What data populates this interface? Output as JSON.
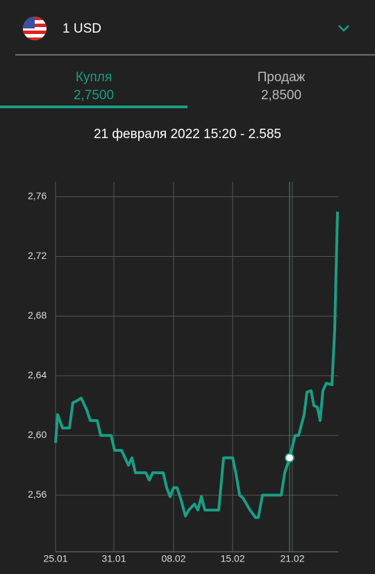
{
  "header": {
    "currency": "1 USD"
  },
  "tabs": [
    {
      "label": "Купля",
      "value": "2,7500"
    },
    {
      "label": "Продаж",
      "value": "2,8500"
    }
  ],
  "chart_data": {
    "type": "line",
    "annotation": "21 февраля 2022 15:20 - 2.585",
    "x": [
      0,
      0.6,
      2,
      3,
      4,
      5,
      6,
      7.4,
      9,
      10,
      12,
      13,
      16,
      17,
      19,
      20,
      21,
      22,
      23,
      26,
      27,
      28,
      31,
      32,
      33,
      34,
      35,
      36,
      37.4,
      38.4,
      40,
      41,
      42,
      43,
      47,
      48.4,
      51,
      52,
      53,
      54,
      56,
      57.6,
      58.4,
      59.6,
      61,
      65,
      66,
      67.4,
      69,
      70,
      71.6,
      72.4,
      73.6,
      74.4,
      75.4,
      76.2,
      77,
      78,
      79.6,
      80.4,
      81.2
    ],
    "values": [
      2.595,
      2.614,
      2.605,
      2.605,
      2.605,
      2.622,
      2.623,
      2.625,
      2.617,
      2.61,
      2.61,
      2.6,
      2.6,
      2.59,
      2.59,
      2.585,
      2.58,
      2.585,
      2.575,
      2.575,
      2.57,
      2.575,
      2.575,
      2.565,
      2.559,
      2.565,
      2.565,
      2.558,
      2.546,
      2.55,
      2.554,
      2.55,
      2.559,
      2.55,
      2.55,
      2.585,
      2.585,
      2.574,
      2.56,
      2.558,
      2.55,
      2.545,
      2.545,
      2.56,
      2.56,
      2.56,
      2.575,
      2.585,
      2.6,
      2.6,
      2.614,
      2.629,
      2.63,
      2.62,
      2.619,
      2.61,
      2.63,
      2.635,
      2.634,
      2.671,
      2.75
    ],
    "color": "#1a9e85",
    "selected_point": 47,
    "xlim": [
      0,
      81.4
    ],
    "xticks": [
      {
        "value": 0,
        "label": "25.01"
      },
      {
        "value": 16.8,
        "label": "31.01"
      },
      {
        "value": 34,
        "label": "08.02"
      },
      {
        "value": 51,
        "label": "15.02"
      },
      {
        "value": 68.2,
        "label": "21.02"
      }
    ],
    "ylim": [
      2.522,
      2.77
    ],
    "yticks": [
      {
        "value": 2.56,
        "label": "2,56"
      },
      {
        "value": 2.6,
        "label": "2,60"
      },
      {
        "value": 2.64,
        "label": "2,64"
      },
      {
        "value": 2.68,
        "label": "2,68"
      },
      {
        "value": 2.72,
        "label": "2,72"
      },
      {
        "value": 2.76,
        "label": "2,76"
      }
    ],
    "grid": true
  }
}
